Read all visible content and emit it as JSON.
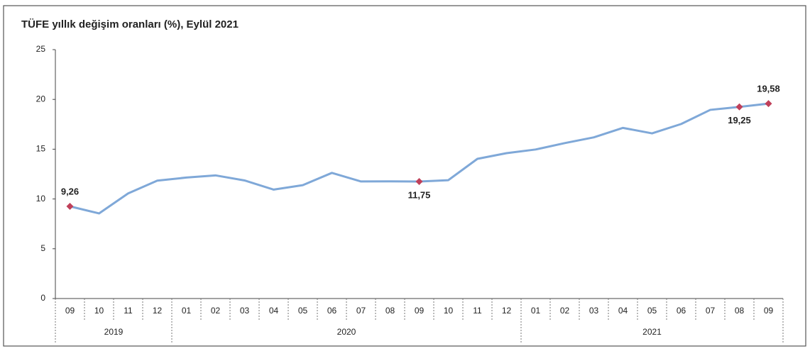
{
  "chart_data": {
    "type": "line",
    "title": "TÜFE yıllık değişim oranları (%), Eylül 2021",
    "groups": [
      {
        "label": "2019",
        "categories": [
          "09",
          "10",
          "11",
          "12"
        ]
      },
      {
        "label": "2020",
        "categories": [
          "01",
          "02",
          "03",
          "04",
          "05",
          "06",
          "07",
          "08",
          "09",
          "10",
          "11",
          "12"
        ]
      },
      {
        "label": "2021",
        "categories": [
          "01",
          "02",
          "03",
          "04",
          "05",
          "06",
          "07",
          "08",
          "09"
        ]
      }
    ],
    "series": [
      {
        "color": "#7fa8d8",
        "values": [
          9.26,
          8.55,
          10.56,
          11.84,
          12.15,
          12.37,
          11.86,
          10.94,
          11.39,
          12.62,
          11.76,
          11.77,
          11.75,
          11.89,
          14.03,
          14.6,
          14.97,
          15.61,
          16.19,
          17.14,
          16.59,
          17.53,
          18.95,
          19.25,
          19.58
        ],
        "value_labels": [
          "9,26",
          null,
          null,
          null,
          null,
          null,
          null,
          null,
          null,
          null,
          null,
          null,
          "11,75",
          null,
          null,
          null,
          null,
          null,
          null,
          null,
          null,
          null,
          null,
          "19,25",
          "19,58"
        ],
        "marker_color": "#c0405a"
      }
    ],
    "ylim": [
      0,
      25
    ],
    "yticks": [
      0,
      5,
      10,
      15,
      20,
      25
    ]
  }
}
